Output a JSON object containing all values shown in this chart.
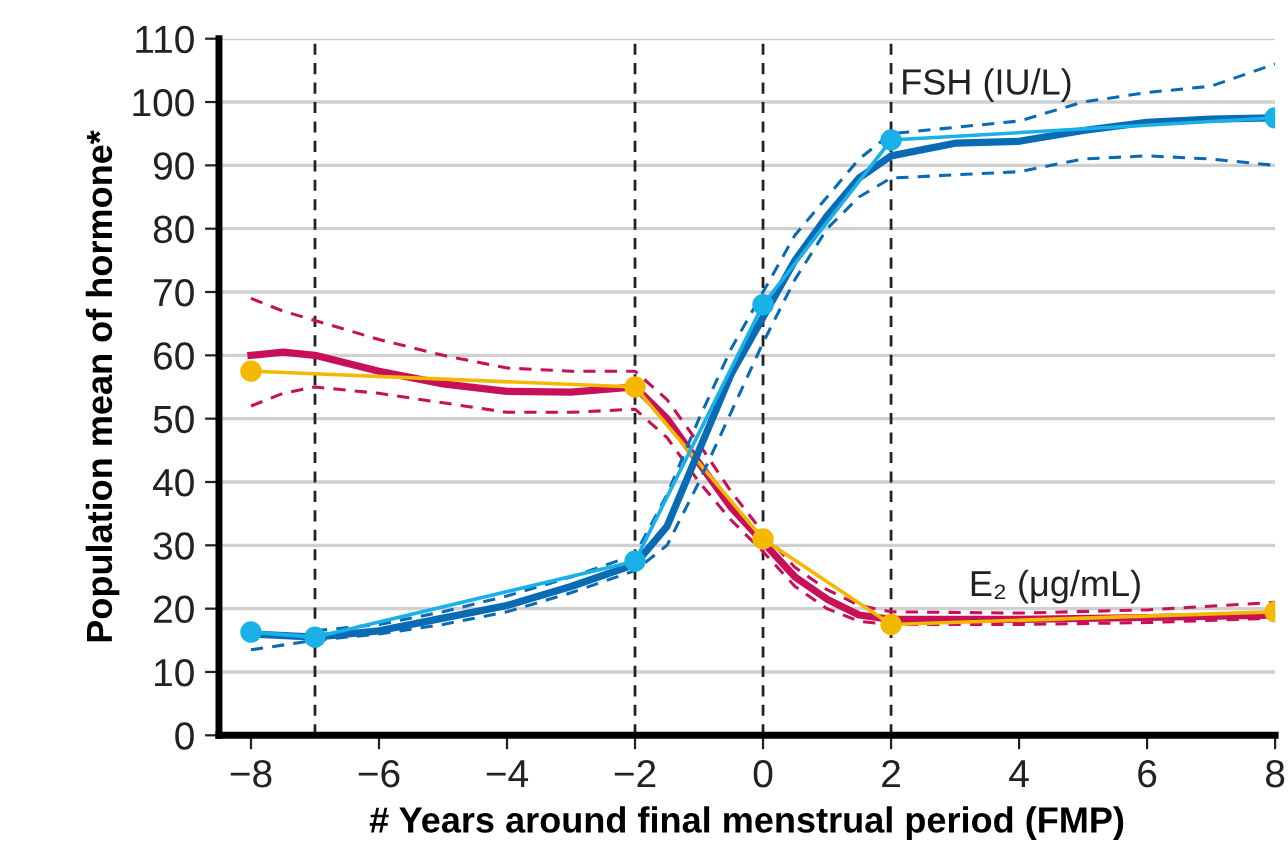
{
  "chart_data": {
    "type": "line",
    "xlabel": "# Years around final menstrual period (FMP)",
    "ylabel": "Population mean of hormone*",
    "xlim": [
      -8.5,
      8
    ],
    "ylim": [
      0,
      110
    ],
    "xticks": [
      {
        "value": -8,
        "label": "−8"
      },
      {
        "value": -6,
        "label": "−6"
      },
      {
        "value": -4,
        "label": "−4"
      },
      {
        "value": -2,
        "label": "−2"
      },
      0,
      2,
      4,
      6,
      8
    ],
    "yticks": [
      0,
      10,
      20,
      30,
      40,
      50,
      60,
      70,
      80,
      90,
      100,
      110
    ],
    "grid": "y",
    "legend": false,
    "ref_lines": [
      {
        "axis": "x",
        "value": -7,
        "color": "#222222",
        "line_style": "dashed"
      },
      {
        "axis": "x",
        "value": -2,
        "color": "#222222",
        "line_style": "dashed"
      },
      {
        "axis": "x",
        "value": 0,
        "color": "#222222",
        "line_style": "dashed"
      },
      {
        "axis": "x",
        "value": 2,
        "color": "#222222",
        "line_style": "dashed"
      }
    ],
    "annotations": [
      "FSH (IU/L)",
      "E₂ (μg/mL)"
    ],
    "series": [
      {
        "color": "#c8105a",
        "marker": "none",
        "line_style": "solid",
        "x": [
          -8,
          -7.5,
          -7,
          -6,
          -5,
          -4,
          -3,
          -2,
          -1.5,
          -1,
          -0.5,
          0,
          0.5,
          1,
          1.5,
          2,
          4,
          6,
          8
        ],
        "values": [
          60,
          60.5,
          60,
          57.5,
          55.5,
          54.3,
          54.2,
          55,
          50,
          43,
          36,
          30.5,
          25,
          21.5,
          19,
          18.3,
          18.3,
          18.6,
          19
        ]
      },
      {
        "color": "#c8105a",
        "marker": "none",
        "line_style": "dashed",
        "x": [
          -8,
          -7.5,
          -7,
          -6,
          -5,
          -4,
          -3,
          -2,
          -1.5,
          -1,
          -0.5,
          0,
          0.5,
          1,
          1.5,
          2,
          4,
          6,
          8
        ],
        "values": [
          52,
          54,
          55,
          54,
          52.5,
          51,
          51,
          51.5,
          47,
          40,
          34,
          29,
          23.5,
          20,
          18,
          17.5,
          17.5,
          17.8,
          18.5
        ]
      },
      {
        "color": "#c8105a",
        "marker": "none",
        "line_style": "dashed",
        "x": [
          -8,
          -7.5,
          -7,
          -6,
          -5,
          -4,
          -3,
          -2,
          -1.5,
          -1,
          -0.5,
          0,
          0.5,
          1,
          1.5,
          2,
          4,
          6,
          8
        ],
        "values": [
          69,
          67,
          65.5,
          62.5,
          60,
          58,
          57.5,
          57.5,
          53,
          46,
          38.5,
          32,
          26.5,
          23,
          20.5,
          19.5,
          19.3,
          19.8,
          21
        ]
      },
      {
        "color": "#f5b800",
        "marker": "circle",
        "line_style": "solid",
        "x": [
          -8,
          -2,
          0,
          2,
          8
        ],
        "values": [
          57.5,
          55,
          31,
          17.5,
          19.5
        ]
      },
      {
        "color": "#0a6bb5",
        "marker": "none",
        "line_style": "solid",
        "x": [
          -8,
          -7,
          -6,
          -5,
          -4,
          -3,
          -2,
          -1.5,
          -1,
          -0.5,
          0,
          0.5,
          1,
          1.5,
          2,
          3,
          4,
          5,
          6,
          7,
          8
        ],
        "values": [
          16,
          15.5,
          16.5,
          18.5,
          20.5,
          23.5,
          27,
          33,
          45,
          57,
          66,
          75,
          82,
          88,
          91.5,
          93.5,
          93.8,
          95.5,
          96.8,
          97.3,
          97.5
        ]
      },
      {
        "color": "#0a6bb5",
        "marker": "none",
        "line_style": "dashed",
        "x": [
          -8,
          -7,
          -6,
          -5,
          -4,
          -3,
          -2,
          -1.5,
          -1,
          -0.5,
          0,
          0.5,
          1,
          1.5,
          2,
          3,
          4,
          5,
          6,
          7,
          8
        ],
        "values": [
          13.5,
          15,
          16,
          17.5,
          19.5,
          22.5,
          26,
          30,
          40,
          51,
          62,
          72,
          80,
          85,
          88,
          88.5,
          89,
          91,
          91.5,
          91,
          90
        ]
      },
      {
        "color": "#0a6bb5",
        "marker": "none",
        "line_style": "dashed",
        "x": [
          -7,
          -6,
          -5,
          -4,
          -3,
          -2,
          -1.5,
          -1,
          -0.5,
          0,
          0.5,
          1,
          1.5,
          2,
          3,
          4,
          5,
          6,
          7,
          8
        ],
        "values": [
          16.5,
          17.5,
          19.5,
          22,
          25,
          28.5,
          38,
          50,
          61,
          70,
          79,
          85,
          91,
          95,
          96,
          97,
          100,
          101.5,
          102.5,
          106
        ]
      },
      {
        "color": "#1ab0e8",
        "marker": "circle",
        "line_style": "solid",
        "x": [
          -8,
          -7,
          -2,
          0,
          2,
          8
        ],
        "values": [
          16.3,
          15.5,
          27.5,
          68,
          94,
          97.5
        ]
      }
    ]
  }
}
